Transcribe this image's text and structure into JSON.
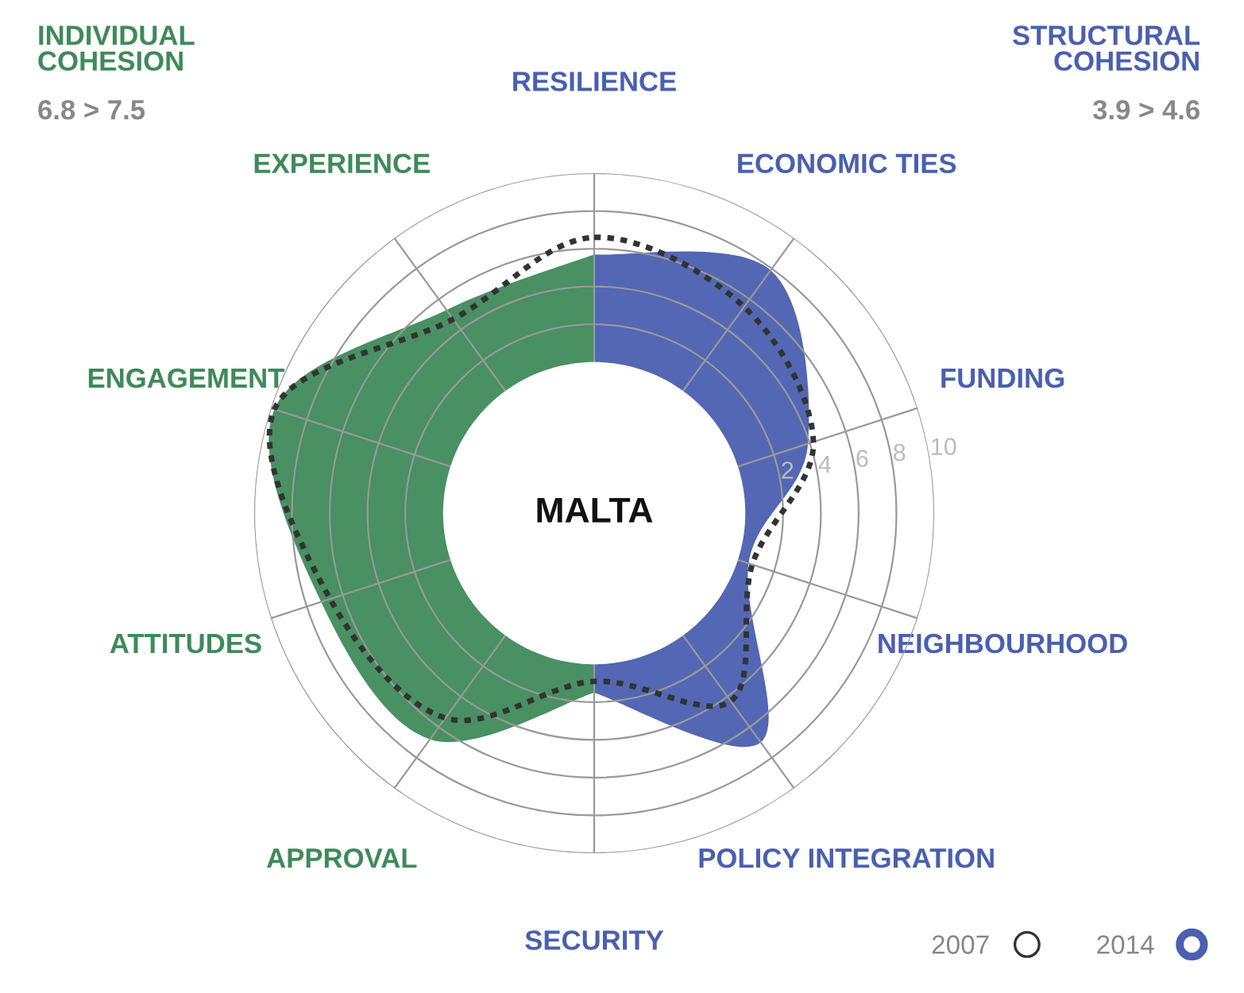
{
  "chart_data": {
    "type": "radar",
    "title": "MALTA",
    "categories": [
      "RESILIENCE",
      "ECONOMIC TIES",
      "FUNDING",
      "NEIGHBOURHOOD",
      "POLICY INTEGRATION",
      "SECURITY",
      "APPROVAL",
      "ATTITUDES",
      "ENGAGEMENT",
      "EXPERIENCE"
    ],
    "ylim": [
      -8,
      10
    ],
    "yticks": [
      2,
      4,
      6,
      8,
      10
    ],
    "grid": true,
    "legend": "bottom right",
    "annotations": [
      "INDIVIDUAL\nCOHESION",
      "STRUCTURAL\nCOHESION",
      "6.8 > 7.5",
      "3.9 > 4.6"
    ],
    "series": [
      {
        "name": "2014",
        "color": "#4a5fb0",
        "values": [
          5.7,
          7.9,
          3.9,
          0.6,
          7.0,
          1.5,
          null,
          null,
          null,
          null
        ]
      },
      {
        "color": "#3f8a5a",
        "values": [
          5.7,
          null,
          null,
          null,
          null,
          1.5,
          6.8,
          7.2,
          9.8,
          5.3
        ]
      },
      {
        "name": "2007",
        "color": "#333333",
        "line_style": "dotted",
        "values": [
          6.6,
          5.5,
          4.2,
          0.8,
          4.3,
          0.9,
          5.4,
          6.7,
          9.8,
          4.7
        ]
      }
    ]
  }
}
